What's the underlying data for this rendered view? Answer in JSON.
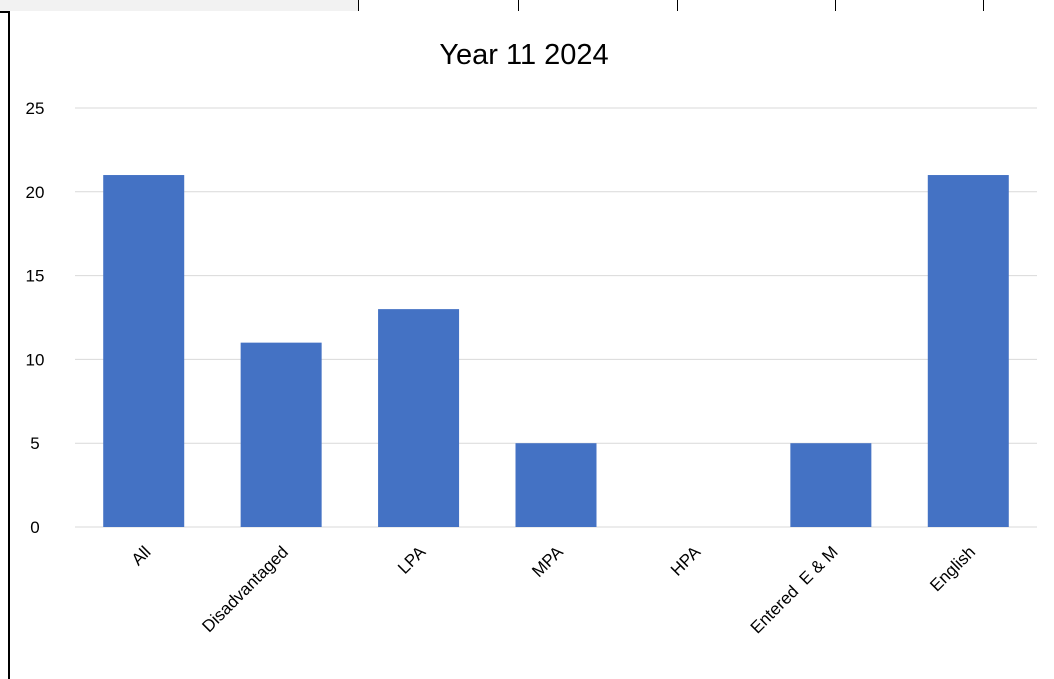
{
  "chart_data": {
    "type": "bar",
    "title": "Year 11 2024",
    "xlabel": "",
    "ylabel": "",
    "categories": [
      "All",
      "Disadvantaged",
      "LPA",
      "MPA",
      "HPA",
      "Entered  E & M",
      "English"
    ],
    "values": [
      21,
      11,
      13,
      5,
      0,
      5,
      21
    ],
    "ylim": [
      0,
      25
    ],
    "yticks": [
      "0",
      "5",
      "10",
      "15",
      "20",
      "25"
    ],
    "ytick_values": [
      0,
      5,
      10,
      15,
      20,
      25
    ],
    "grid": true,
    "legend": "none",
    "bar_color": "#4472c4",
    "grid_color": "#d9d9d9"
  }
}
